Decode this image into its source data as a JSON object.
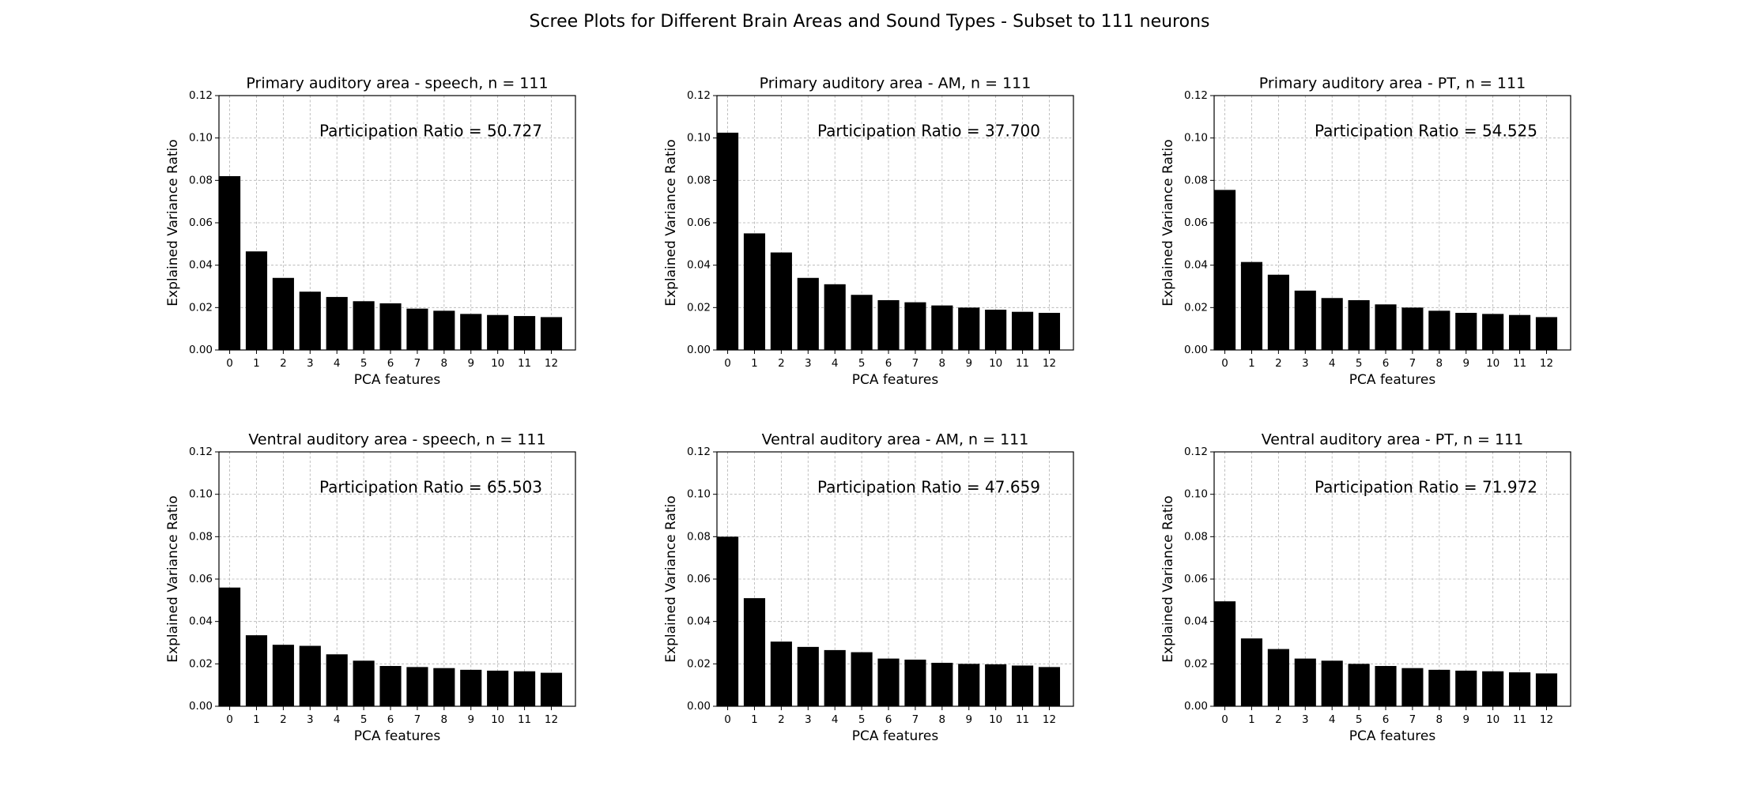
{
  "suptitle": "Scree Plots for Different Brain Areas and Sound Types - Subset to 111 neurons",
  "chart_data": [
    {
      "type": "bar",
      "title": "Primary auditory area - speech, n = 111",
      "xlabel": "PCA features",
      "ylabel": "Explained Variance Ratio",
      "annotation": "Participation Ratio = 50.727",
      "x": [
        0,
        1,
        2,
        3,
        4,
        5,
        6,
        7,
        8,
        9,
        10,
        11,
        12
      ],
      "values": [
        0.082,
        0.0465,
        0.034,
        0.0275,
        0.025,
        0.023,
        0.022,
        0.0195,
        0.0185,
        0.017,
        0.0165,
        0.016,
        0.0155
      ],
      "xlim": [
        -0.4,
        12.9
      ],
      "ylim": [
        0,
        0.12
      ],
      "yticks": [
        "0.00",
        "0.02",
        "0.04",
        "0.06",
        "0.08",
        "0.10",
        "0.12"
      ],
      "grid": true,
      "color": "#000000"
    },
    {
      "type": "bar",
      "title": "Primary auditory area - AM, n = 111",
      "xlabel": "PCA features",
      "ylabel": "Explained Variance Ratio",
      "annotation": "Participation Ratio = 37.700",
      "x": [
        0,
        1,
        2,
        3,
        4,
        5,
        6,
        7,
        8,
        9,
        10,
        11,
        12
      ],
      "values": [
        0.1025,
        0.055,
        0.046,
        0.034,
        0.031,
        0.026,
        0.0235,
        0.0225,
        0.021,
        0.02,
        0.019,
        0.018,
        0.0175
      ],
      "xlim": [
        -0.4,
        12.9
      ],
      "ylim": [
        0,
        0.12
      ],
      "yticks": [
        "0.00",
        "0.02",
        "0.04",
        "0.06",
        "0.08",
        "0.10",
        "0.12"
      ],
      "grid": true,
      "color": "#000000"
    },
    {
      "type": "bar",
      "title": "Primary auditory area - PT, n = 111",
      "xlabel": "PCA features",
      "ylabel": "Explained Variance Ratio",
      "annotation": "Participation Ratio = 54.525",
      "x": [
        0,
        1,
        2,
        3,
        4,
        5,
        6,
        7,
        8,
        9,
        10,
        11,
        12
      ],
      "values": [
        0.0755,
        0.0415,
        0.0355,
        0.028,
        0.0245,
        0.0235,
        0.0215,
        0.02,
        0.0185,
        0.0175,
        0.017,
        0.0165,
        0.0155
      ],
      "xlim": [
        -0.4,
        12.9
      ],
      "ylim": [
        0,
        0.12
      ],
      "yticks": [
        "0.00",
        "0.02",
        "0.04",
        "0.06",
        "0.08",
        "0.10",
        "0.12"
      ],
      "grid": true,
      "color": "#000000"
    },
    {
      "type": "bar",
      "title": "Ventral auditory area - speech, n = 111",
      "xlabel": "PCA features",
      "ylabel": "Explained Variance Ratio",
      "annotation": "Participation Ratio = 65.503",
      "x": [
        0,
        1,
        2,
        3,
        4,
        5,
        6,
        7,
        8,
        9,
        10,
        11,
        12
      ],
      "values": [
        0.056,
        0.0335,
        0.029,
        0.0285,
        0.0245,
        0.0215,
        0.019,
        0.0185,
        0.018,
        0.0172,
        0.0168,
        0.0165,
        0.0158
      ],
      "xlim": [
        -0.4,
        12.9
      ],
      "ylim": [
        0,
        0.12
      ],
      "yticks": [
        "0.00",
        "0.02",
        "0.04",
        "0.06",
        "0.08",
        "0.10",
        "0.12"
      ],
      "grid": true,
      "color": "#000000"
    },
    {
      "type": "bar",
      "title": "Ventral auditory area - AM, n = 111",
      "xlabel": "PCA features",
      "ylabel": "Explained Variance Ratio",
      "annotation": "Participation Ratio = 47.659",
      "x": [
        0,
        1,
        2,
        3,
        4,
        5,
        6,
        7,
        8,
        9,
        10,
        11,
        12
      ],
      "values": [
        0.08,
        0.051,
        0.0305,
        0.028,
        0.0265,
        0.0255,
        0.0225,
        0.022,
        0.0205,
        0.02,
        0.0198,
        0.0192,
        0.0185
      ],
      "xlim": [
        -0.4,
        12.9
      ],
      "ylim": [
        0,
        0.12
      ],
      "yticks": [
        "0.00",
        "0.02",
        "0.04",
        "0.06",
        "0.08",
        "0.10",
        "0.12"
      ],
      "grid": true,
      "color": "#000000"
    },
    {
      "type": "bar",
      "title": "Ventral auditory area - PT, n = 111",
      "xlabel": "PCA features",
      "ylabel": "Explained Variance Ratio",
      "annotation": "Participation Ratio = 71.972",
      "x": [
        0,
        1,
        2,
        3,
        4,
        5,
        6,
        7,
        8,
        9,
        10,
        11,
        12
      ],
      "values": [
        0.0495,
        0.032,
        0.027,
        0.0225,
        0.0215,
        0.02,
        0.019,
        0.018,
        0.0172,
        0.0168,
        0.0165,
        0.016,
        0.0155
      ],
      "xlim": [
        -0.4,
        12.9
      ],
      "ylim": [
        0,
        0.12
      ],
      "yticks": [
        "0.00",
        "0.02",
        "0.04",
        "0.06",
        "0.08",
        "0.10",
        "0.12"
      ],
      "grid": true,
      "color": "#000000"
    }
  ]
}
